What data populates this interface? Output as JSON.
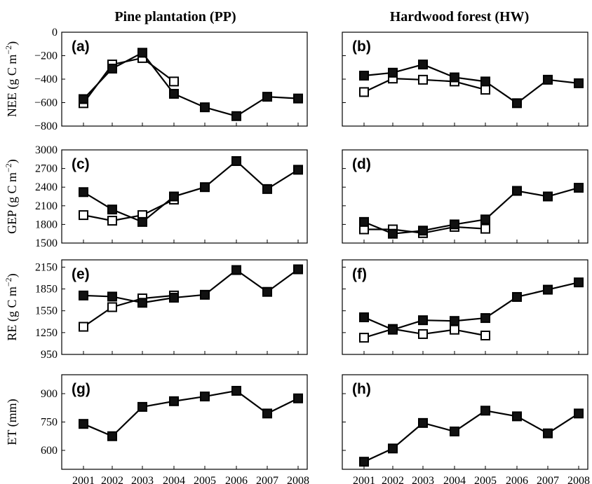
{
  "figure": {
    "column_titles": [
      "Pine plantation (PP)",
      "Hardwood forest (HW)"
    ]
  },
  "chart_data": [
    {
      "panel": "(a)",
      "type": "line",
      "ylabel": "NEE (g C m",
      "ylabel_sup": "−2",
      "ylabel_close": ")",
      "ylim": [
        -800,
        0
      ],
      "yticks": [
        0,
        -200,
        -400,
        -600,
        -800
      ],
      "ytick_labels": [
        "0",
        "−200",
        "−400",
        "−600",
        "−800"
      ],
      "x": [
        2001,
        2002,
        2003,
        2004,
        2005,
        2006,
        2007,
        2008
      ],
      "series": [
        {
          "marker": "filled-square",
          "values": [
            -570,
            -310,
            -175,
            -525,
            -640,
            -715,
            -550,
            -565
          ]
        },
        {
          "marker": "open-square",
          "values": [
            -605,
            -275,
            -220,
            -420,
            null,
            null,
            null,
            null
          ]
        }
      ]
    },
    {
      "panel": "(b)",
      "type": "line",
      "ylim": [
        -800,
        0
      ],
      "yticks": [
        0,
        -200,
        -400,
        -600,
        -800
      ],
      "x": [
        2001,
        2002,
        2003,
        2004,
        2005,
        2006,
        2007,
        2008
      ],
      "series": [
        {
          "marker": "filled-square",
          "values": [
            -370,
            -345,
            -275,
            -385,
            -420,
            -605,
            -405,
            -435
          ]
        },
        {
          "marker": "open-square",
          "values": [
            -510,
            -395,
            -405,
            -420,
            -490,
            null,
            null,
            null
          ]
        }
      ]
    },
    {
      "panel": "(c)",
      "type": "line",
      "ylabel": "GEP (g C m",
      "ylabel_sup": "−2",
      "ylabel_close": ")",
      "ylim": [
        1500,
        3000
      ],
      "yticks": [
        3000,
        2700,
        2400,
        2100,
        1800,
        1500
      ],
      "ytick_labels": [
        "3000",
        "2700",
        "2400",
        "2100",
        "1800",
        "1500"
      ],
      "x": [
        2001,
        2002,
        2003,
        2004,
        2005,
        2006,
        2007,
        2008
      ],
      "series": [
        {
          "marker": "filled-square",
          "values": [
            2320,
            2040,
            1840,
            2250,
            2400,
            2820,
            2370,
            2680
          ]
        },
        {
          "marker": "open-square",
          "values": [
            1950,
            1860,
            1950,
            2200,
            null,
            null,
            null,
            null
          ]
        }
      ]
    },
    {
      "panel": "(d)",
      "type": "line",
      "ylim": [
        1500,
        3000
      ],
      "yticks": [
        3000,
        2700,
        2400,
        2100,
        1800,
        1500
      ],
      "x": [
        2001,
        2002,
        2003,
        2004,
        2005,
        2006,
        2007,
        2008
      ],
      "series": [
        {
          "marker": "filled-square",
          "values": [
            1840,
            1650,
            1700,
            1800,
            1880,
            2340,
            2250,
            2390
          ]
        },
        {
          "marker": "open-square",
          "values": [
            1720,
            1720,
            1660,
            1760,
            1730,
            null,
            null,
            null
          ]
        }
      ]
    },
    {
      "panel": "(e)",
      "type": "line",
      "ylabel": "RE (g C m",
      "ylabel_sup": "−2",
      "ylabel_close": ")",
      "ylim": [
        950,
        2250
      ],
      "yticks": [
        2150,
        1850,
        1550,
        1250,
        950
      ],
      "ytick_labels": [
        "2150",
        "1850",
        "1550",
        "1250",
        "950"
      ],
      "x": [
        2001,
        2002,
        2003,
        2004,
        2005,
        2006,
        2007,
        2008
      ],
      "series": [
        {
          "marker": "filled-square",
          "values": [
            1760,
            1745,
            1660,
            1730,
            1770,
            2110,
            1810,
            2120
          ]
        },
        {
          "marker": "open-square",
          "values": [
            1330,
            1600,
            1720,
            1760,
            null,
            null,
            null,
            null
          ]
        }
      ]
    },
    {
      "panel": "(f)",
      "type": "line",
      "ylim": [
        950,
        2250
      ],
      "yticks": [
        2150,
        1850,
        1550,
        1250,
        950
      ],
      "x": [
        2001,
        2002,
        2003,
        2004,
        2005,
        2006,
        2007,
        2008
      ],
      "series": [
        {
          "marker": "filled-square",
          "values": [
            1460,
            1290,
            1420,
            1410,
            1450,
            1740,
            1840,
            1940
          ]
        },
        {
          "marker": "open-square",
          "values": [
            1180,
            1300,
            1230,
            1290,
            1210,
            null,
            null,
            null
          ]
        }
      ]
    },
    {
      "panel": "(g)",
      "type": "line",
      "ylabel": "ET (mm)",
      "ylim": [
        500,
        1000
      ],
      "yticks": [
        900,
        750,
        600
      ],
      "ytick_labels": [
        "900",
        "750",
        "600"
      ],
      "x": [
        2001,
        2002,
        2003,
        2004,
        2005,
        2006,
        2007,
        2008
      ],
      "xtick_labels": [
        "2001",
        "2002",
        "2003",
        "2004",
        "2005",
        "2006",
        "2007",
        "2008"
      ],
      "series": [
        {
          "marker": "filled-square",
          "values": [
            740,
            675,
            830,
            860,
            885,
            915,
            795,
            875
          ]
        }
      ]
    },
    {
      "panel": "(h)",
      "type": "line",
      "ylim": [
        500,
        1000
      ],
      "yticks": [
        900,
        750,
        600
      ],
      "x": [
        2001,
        2002,
        2003,
        2004,
        2005,
        2006,
        2007,
        2008
      ],
      "xtick_labels": [
        "2001",
        "2002",
        "2003",
        "2004",
        "2005",
        "2006",
        "2007",
        "2008"
      ],
      "series": [
        {
          "marker": "filled-square",
          "values": [
            540,
            610,
            745,
            700,
            810,
            780,
            690,
            795
          ]
        }
      ]
    }
  ]
}
